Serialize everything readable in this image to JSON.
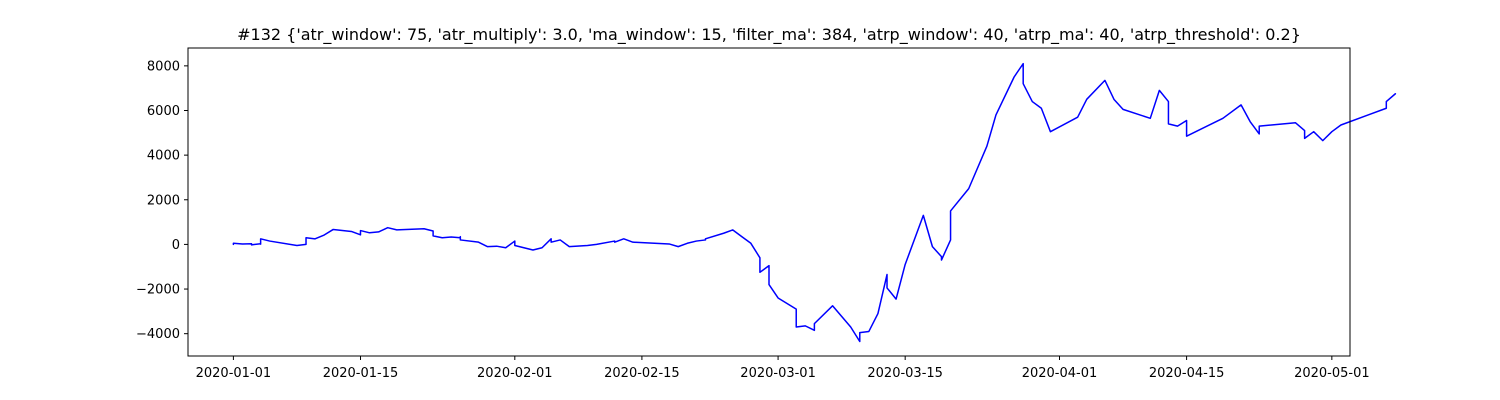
{
  "chart_data": {
    "type": "line",
    "title": "#132 {'atr_window': 75, 'atr_multiply': 3.0, 'ma_window': 15, 'filter_ma': 384, 'atrp_window': 40, 'atrp_ma': 40, 'atrp_threshold': 0.2}",
    "xlabel": "",
    "ylabel": "",
    "xlim": [
      "2019-12-27",
      "2020-05-03"
    ],
    "ylim": [
      -5000,
      8800
    ],
    "x_ticks": [
      "2020-01-01",
      "2020-01-15",
      "2020-02-01",
      "2020-02-15",
      "2020-03-01",
      "2020-03-15",
      "2020-04-01",
      "2020-04-15",
      "2020-05-01"
    ],
    "y_ticks": [
      -4000,
      -2000,
      0,
      2000,
      4000,
      6000,
      8000
    ],
    "grid": false,
    "colors": {
      "line": "#0000ff",
      "axis": "#000000",
      "background": "#ffffff"
    },
    "series": [
      {
        "values": [
          [
            "2020-01-01",
            0
          ],
          [
            "2020-01-01",
            50
          ],
          [
            "2020-01-02",
            20
          ],
          [
            "2020-01-03",
            30
          ],
          [
            "2020-01-03",
            -20
          ],
          [
            "2020-01-04",
            30
          ],
          [
            "2020-01-04",
            10
          ],
          [
            "2020-01-04",
            250
          ],
          [
            "2020-01-05",
            150
          ],
          [
            "2020-01-08",
            -50
          ],
          [
            "2020-01-09",
            0
          ],
          [
            "2020-01-09",
            300
          ],
          [
            "2020-01-10",
            250
          ],
          [
            "2020-01-11",
            420
          ],
          [
            "2020-01-12",
            670
          ],
          [
            "2020-01-14",
            580
          ],
          [
            "2020-01-15",
            430
          ],
          [
            "2020-01-15",
            620
          ],
          [
            "2020-01-16",
            520
          ],
          [
            "2020-01-17",
            560
          ],
          [
            "2020-01-18",
            750
          ],
          [
            "2020-01-19",
            650
          ],
          [
            "2020-01-22",
            700
          ],
          [
            "2020-01-23",
            600
          ],
          [
            "2020-01-23",
            380
          ],
          [
            "2020-01-24",
            300
          ],
          [
            "2020-01-25",
            330
          ],
          [
            "2020-01-26",
            300
          ],
          [
            "2020-01-26",
            350
          ],
          [
            "2020-01-26",
            200
          ],
          [
            "2020-01-28",
            100
          ],
          [
            "2020-01-29",
            -100
          ],
          [
            "2020-01-30",
            -80
          ],
          [
            "2020-01-31",
            -150
          ],
          [
            "2020-02-01",
            150
          ],
          [
            "2020-02-01",
            -50
          ],
          [
            "2020-02-03",
            -250
          ],
          [
            "2020-02-04",
            -150
          ],
          [
            "2020-02-05",
            250
          ],
          [
            "2020-02-05",
            100
          ],
          [
            "2020-02-06",
            200
          ],
          [
            "2020-02-07",
            -100
          ],
          [
            "2020-02-09",
            -50
          ],
          [
            "2020-02-10",
            0
          ],
          [
            "2020-02-12",
            150
          ],
          [
            "2020-02-12",
            100
          ],
          [
            "2020-02-13",
            250
          ],
          [
            "2020-02-14",
            100
          ],
          [
            "2020-02-18",
            20
          ],
          [
            "2020-02-19",
            -100
          ],
          [
            "2020-02-20",
            50
          ],
          [
            "2020-02-21",
            150
          ],
          [
            "2020-02-22",
            200
          ],
          [
            "2020-02-22",
            250
          ],
          [
            "2020-02-24",
            500
          ],
          [
            "2020-02-25",
            650
          ],
          [
            "2020-02-26",
            350
          ],
          [
            "2020-02-27",
            50
          ],
          [
            "2020-02-28",
            -600
          ],
          [
            "2020-02-28",
            -1250
          ],
          [
            "2020-02-29",
            -950
          ],
          [
            "2020-02-29",
            -1800
          ],
          [
            "2020-03-01",
            -2400
          ],
          [
            "2020-03-03",
            -2900
          ],
          [
            "2020-03-03",
            -3700
          ],
          [
            "2020-03-04",
            -3650
          ],
          [
            "2020-03-05",
            -3850
          ],
          [
            "2020-03-05",
            -3550
          ],
          [
            "2020-03-07",
            -2750
          ],
          [
            "2020-03-09",
            -3700
          ],
          [
            "2020-03-10",
            -4350
          ],
          [
            "2020-03-10",
            -3950
          ],
          [
            "2020-03-11",
            -3900
          ],
          [
            "2020-03-12",
            -3100
          ],
          [
            "2020-03-13",
            -1350
          ],
          [
            "2020-03-13",
            -1950
          ],
          [
            "2020-03-14",
            -2450
          ],
          [
            "2020-03-15",
            -900
          ],
          [
            "2020-03-17",
            1300
          ],
          [
            "2020-03-18",
            -100
          ],
          [
            "2020-03-19",
            -550
          ],
          [
            "2020-03-19",
            -700
          ],
          [
            "2020-03-20",
            200
          ],
          [
            "2020-03-20",
            1500
          ],
          [
            "2020-03-22",
            2500
          ],
          [
            "2020-03-24",
            4400
          ],
          [
            "2020-03-25",
            5800
          ],
          [
            "2020-03-27",
            7500
          ],
          [
            "2020-03-28",
            8100
          ],
          [
            "2020-03-28",
            7200
          ],
          [
            "2020-03-29",
            6400
          ],
          [
            "2020-03-30",
            6100
          ],
          [
            "2020-03-31",
            5050
          ],
          [
            "2020-04-03",
            5700
          ],
          [
            "2020-04-04",
            6500
          ],
          [
            "2020-04-06",
            7350
          ],
          [
            "2020-04-07",
            6500
          ],
          [
            "2020-04-08",
            6050
          ],
          [
            "2020-04-11",
            5650
          ],
          [
            "2020-04-12",
            6900
          ],
          [
            "2020-04-13",
            6400
          ],
          [
            "2020-04-13",
            5400
          ],
          [
            "2020-04-14",
            5300
          ],
          [
            "2020-04-15",
            5550
          ],
          [
            "2020-04-15",
            4850
          ],
          [
            "2020-04-19",
            5650
          ],
          [
            "2020-04-21",
            6250
          ],
          [
            "2020-04-22",
            5500
          ],
          [
            "2020-04-23",
            4950
          ],
          [
            "2020-04-23",
            5300
          ],
          [
            "2020-04-27",
            5450
          ],
          [
            "2020-04-28",
            5100
          ],
          [
            "2020-04-28",
            4750
          ],
          [
            "2020-04-29",
            5050
          ],
          [
            "2020-04-30",
            4650
          ],
          [
            "2020-05-01",
            5050
          ],
          [
            "2020-05-02",
            5350
          ],
          [
            "2020-05-05",
            5800
          ],
          [
            "2020-05-07",
            6100
          ],
          [
            "2020-05-07",
            6400
          ],
          [
            "2020-05-08",
            6750
          ]
        ]
      }
    ]
  }
}
